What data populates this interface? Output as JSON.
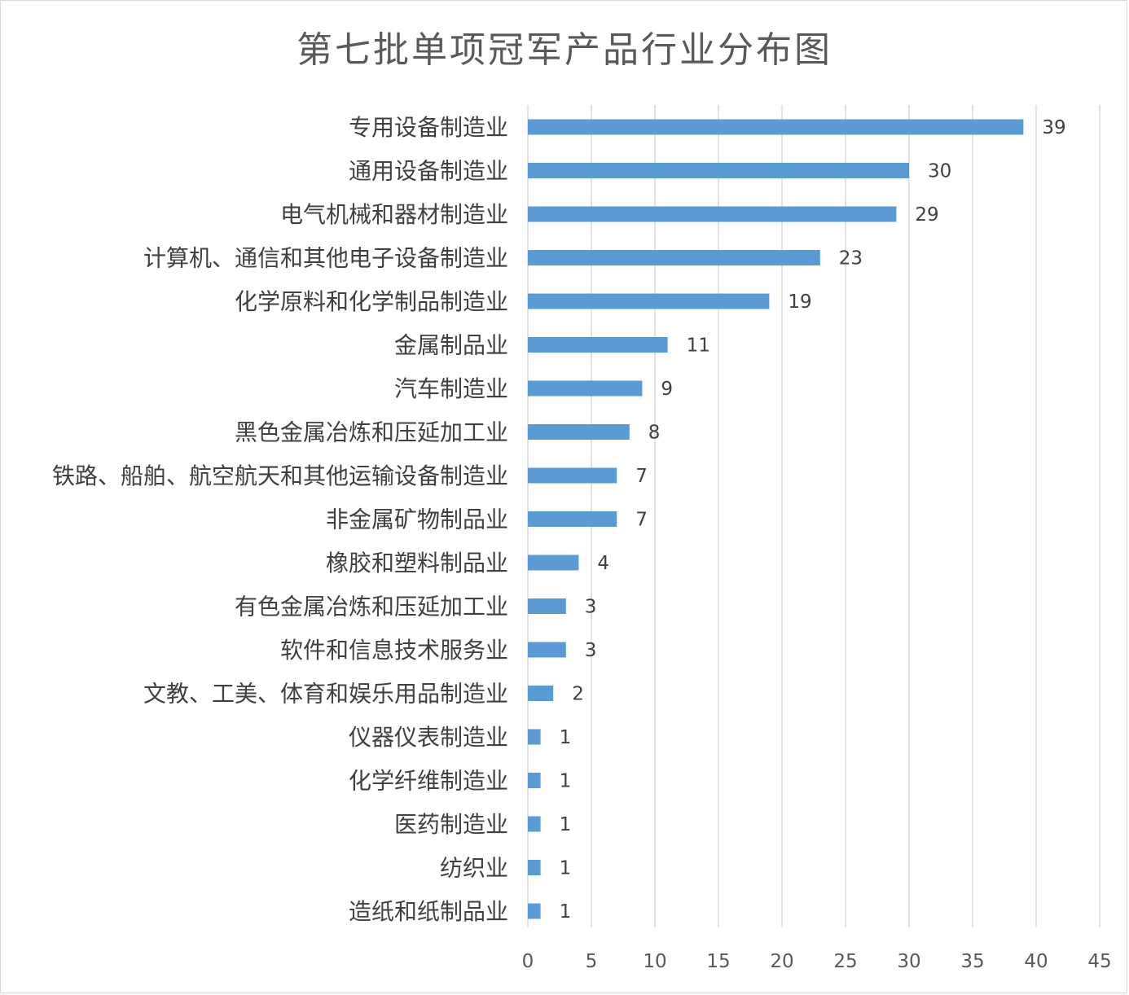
{
  "chart_data": {
    "type": "bar",
    "orientation": "horizontal",
    "title": "第七批单项冠军产品行业分布图",
    "categories": [
      "专用设备制造业",
      "通用设备制造业",
      "电气机械和器材制造业",
      "计算机、通信和其他电子设备制造业",
      "化学原料和化学制品制造业",
      "金属制品业",
      "汽车制造业",
      "黑色金属冶炼和压延加工业",
      "铁路、船舶、航空航天和其他运输设备制造业",
      "非金属矿物制品业",
      "橡胶和塑料制品业",
      "有色金属冶炼和压延加工业",
      "软件和信息技术服务业",
      "文教、工美、体育和娱乐用品制造业",
      "仪器仪表制造业",
      "化学纤维制造业",
      "医药制造业",
      "纺织业",
      "造纸和纸制品业"
    ],
    "values": [
      39,
      30,
      29,
      23,
      19,
      11,
      9,
      8,
      7,
      7,
      4,
      3,
      3,
      2,
      1,
      1,
      1,
      1,
      1
    ],
    "xlim": [
      0,
      45
    ],
    "xticks": [
      0,
      5,
      10,
      15,
      20,
      25,
      30,
      35,
      40,
      45
    ],
    "xlabel": "",
    "ylabel": "",
    "grid": "vertical",
    "data_labels": true,
    "bar_color": "#5b9bd5",
    "grid_color": "#d9d9d9"
  }
}
